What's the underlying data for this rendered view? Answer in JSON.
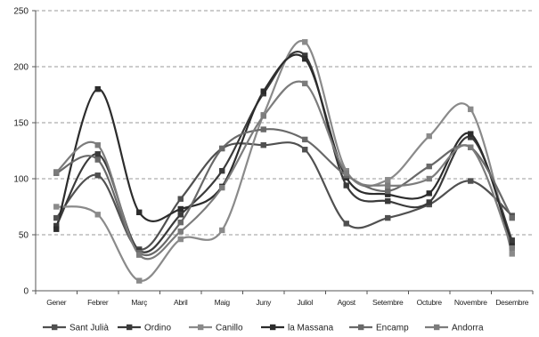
{
  "chart_data": {
    "type": "line",
    "title": "",
    "xlabel": "",
    "ylabel": "",
    "ylim": [
      0,
      250
    ],
    "yticks": [
      0,
      50,
      100,
      150,
      200,
      250
    ],
    "grid": "horizontal dashed",
    "legend_position": "bottom",
    "categories": [
      "Gener",
      "Febrer",
      "Març",
      "Abril",
      "Maig",
      "Juny",
      "Juliol",
      "Agost",
      "Setembre",
      "Octubre",
      "Novembre",
      "Desembre"
    ],
    "series": [
      {
        "name": "Sant Julià",
        "color": "#505050",
        "values": [
          65,
          103,
          37,
          82,
          127,
          130,
          126,
          60,
          65,
          77,
          98,
          67
        ]
      },
      {
        "name": "Ordino",
        "color": "#3a3a3a",
        "values": [
          58,
          122,
          36,
          68,
          107,
          176,
          210,
          94,
          80,
          79,
          137,
          45
        ]
      },
      {
        "name": "Canillo",
        "color": "#8a8a8a",
        "values": [
          75,
          68,
          9,
          46,
          54,
          157,
          222,
          107,
          99,
          138,
          162,
          33
        ]
      },
      {
        "name": "la Massana",
        "color": "#2c2c2c",
        "values": [
          55,
          180,
          70,
          73,
          93,
          178,
          207,
          101,
          86,
          87,
          140,
          40
        ]
      },
      {
        "name": "Encamp",
        "color": "#696969",
        "values": [
          105,
          117,
          34,
          61,
          127,
          144,
          135,
          103,
          89,
          111,
          128,
          65
        ]
      },
      {
        "name": "Andorra",
        "color": "#7c7c7c",
        "values": [
          106,
          130,
          32,
          53,
          92,
          156,
          185,
          105,
          94,
          100,
          128,
          38
        ]
      }
    ]
  }
}
